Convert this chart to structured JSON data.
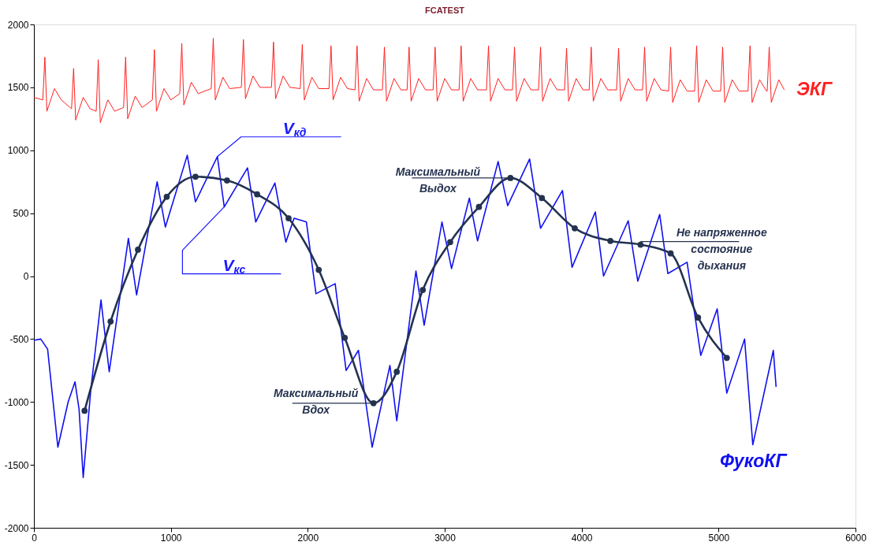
{
  "chart_data": {
    "type": "line",
    "title": "FCATEST",
    "xlim": [
      0,
      6000
    ],
    "xticks": [
      0,
      1000,
      2000,
      3000,
      4000,
      5000,
      6000
    ],
    "ylim": [
      -2000,
      2000
    ],
    "yticks": [
      -2000,
      -1500,
      -1000,
      -500,
      0,
      500,
      1000,
      1500,
      2000
    ],
    "grid": false,
    "series": [
      {
        "name": "ЭКГ",
        "color": "#ff2020",
        "x": [
          0,
          65,
          80,
          95,
          150,
          200,
          275,
          290,
          305,
          360,
          410,
          455,
          470,
          485,
          540,
          590,
          655,
          670,
          685,
          740,
          790,
          865,
          880,
          895,
          950,
          1000,
          1065,
          1080,
          1095,
          1150,
          1200,
          1295,
          1310,
          1325,
          1380,
          1430,
          1515,
          1530,
          1545,
          1600,
          1650,
          1735,
          1750,
          1765,
          1820,
          1870,
          1945,
          1960,
          1975,
          2030,
          2080,
          2155,
          2170,
          2185,
          2240,
          2290,
          2345,
          2360,
          2375,
          2430,
          2480,
          2545,
          2560,
          2575,
          2630,
          2680,
          2725,
          2740,
          2755,
          2810,
          2860,
          2915,
          2930,
          2945,
          3000,
          3050,
          3105,
          3120,
          3135,
          3190,
          3240,
          3305,
          3320,
          3335,
          3390,
          3440,
          3495,
          3510,
          3525,
          3580,
          3630,
          3685,
          3700,
          3715,
          3770,
          3820,
          3875,
          3890,
          3905,
          3960,
          4010,
          4055,
          4070,
          4085,
          4140,
          4190,
          4255,
          4270,
          4285,
          4340,
          4390,
          4445,
          4460,
          4475,
          4530,
          4580,
          4635,
          4650,
          4665,
          4720,
          4770,
          4825,
          4840,
          4855,
          4910,
          4960,
          5015,
          5030,
          5045,
          5100,
          5150,
          5215,
          5230,
          5245,
          5300,
          5350,
          5355,
          5370,
          5385,
          5440,
          5480
        ],
        "values": [
          1420,
          1400,
          1740,
          1310,
          1490,
          1400,
          1330,
          1650,
          1240,
          1420,
          1330,
          1310,
          1720,
          1220,
          1400,
          1310,
          1340,
          1740,
          1250,
          1430,
          1340,
          1400,
          1800,
          1310,
          1490,
          1400,
          1450,
          1850,
          1360,
          1540,
          1450,
          1490,
          1890,
          1400,
          1580,
          1490,
          1500,
          1880,
          1410,
          1590,
          1500,
          1500,
          1860,
          1410,
          1590,
          1500,
          1490,
          1840,
          1400,
          1580,
          1490,
          1490,
          1830,
          1400,
          1580,
          1490,
          1480,
          1830,
          1390,
          1570,
          1480,
          1480,
          1820,
          1390,
          1570,
          1480,
          1480,
          1820,
          1390,
          1570,
          1480,
          1480,
          1820,
          1390,
          1570,
          1480,
          1480,
          1830,
          1390,
          1570,
          1480,
          1480,
          1830,
          1390,
          1570,
          1480,
          1480,
          1820,
          1390,
          1570,
          1480,
          1480,
          1820,
          1390,
          1570,
          1480,
          1480,
          1810,
          1390,
          1570,
          1480,
          1480,
          1820,
          1390,
          1570,
          1480,
          1480,
          1810,
          1390,
          1570,
          1480,
          1480,
          1820,
          1390,
          1570,
          1480,
          1470,
          1820,
          1380,
          1560,
          1470,
          1470,
          1830,
          1380,
          1560,
          1470,
          1470,
          1820,
          1380,
          1560,
          1470,
          1470,
          1830,
          1380,
          1560,
          1470,
          1470,
          1820,
          1380,
          1560,
          1480
        ]
      },
      {
        "name": "ФукоКГ",
        "color": "#1010f0",
        "x": [
          0,
          50,
          100,
          175,
          250,
          300,
          330,
          360,
          415,
          490,
          550,
          690,
          750,
          900,
          960,
          1120,
          1180,
          1340,
          1390,
          1560,
          1620,
          1760,
          1840,
          1900,
          1990,
          2060,
          2200,
          2280,
          2370,
          2470,
          2600,
          2650,
          2790,
          2850,
          2980,
          3050,
          3180,
          3240,
          3390,
          3460,
          3620,
          3700,
          3860,
          3930,
          4100,
          4160,
          4340,
          4410,
          4570,
          4630,
          4770,
          4870,
          4990,
          5060,
          5190,
          5250,
          5400,
          5420
        ],
        "values": [
          -510,
          -500,
          -580,
          -1360,
          -1000,
          -840,
          -1060,
          -1600,
          -910,
          -190,
          -760,
          300,
          -150,
          750,
          390,
          960,
          590,
          950,
          550,
          860,
          430,
          740,
          270,
          460,
          430,
          -140,
          -60,
          -750,
          -590,
          -1360,
          -710,
          -1150,
          40,
          -390,
          430,
          60,
          620,
          280,
          910,
          560,
          930,
          380,
          680,
          70,
          510,
          0,
          440,
          -40,
          490,
          20,
          110,
          -630,
          -260,
          -930,
          -500,
          -1340,
          -590,
          -880
        ]
      },
      {
        "color": "#23324f",
        "marker": "circle",
        "x": [
          370,
          560,
          760,
          970,
          1180,
          1410,
          1630,
          1860,
          2080,
          2270,
          2480,
          2650,
          2840,
          3040,
          3250,
          3480,
          3710,
          3950,
          4210,
          4430,
          4650,
          4850,
          5060
        ],
        "values": [
          -1070,
          -360,
          210,
          630,
          790,
          760,
          650,
          460,
          50,
          -490,
          -1010,
          -760,
          -110,
          270,
          550,
          780,
          620,
          380,
          280,
          250,
          180,
          -330,
          -650
        ]
      }
    ],
    "annotations": [
      {
        "text": "V$_{кд}$",
        "x": 1340,
        "y": 950
      },
      {
        "text": "V$_{кс}$",
        "x": 1390,
        "y": 550
      },
      {
        "text": "Максимальный\nВдох",
        "x": 2480,
        "y": -1010
      },
      {
        "text": "Максимальный\nВыдох",
        "x": 3480,
        "y": 780
      },
      {
        "text": "Не напряженное\nсостояние\nдыхания",
        "x": 4430,
        "y": 250
      }
    ]
  }
}
